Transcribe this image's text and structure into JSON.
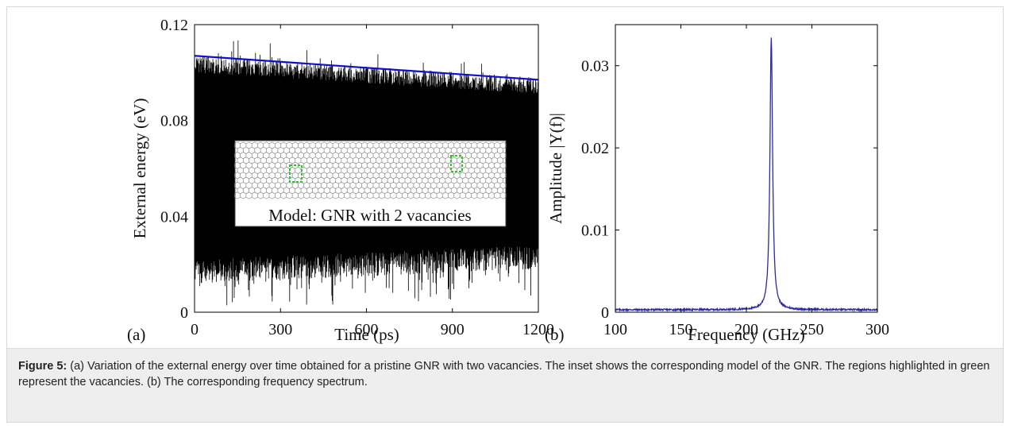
{
  "caption": {
    "label": "Figure 5:",
    "text": " (a) Variation of the external energy over time obtained for a pristine GNR with two vacancies. The inset shows the corresponding model of the GNR. The regions highlighted in green represent the vacancies. (b) The corresponding frequency spectrum."
  },
  "colors": {
    "signal": "#000000",
    "trend": "#1010c8",
    "spectrum": "#2a2aa8",
    "vacancy": "#22cc22",
    "lattice": "#777777"
  },
  "chart_data": [
    {
      "panel": "(a)",
      "type": "line",
      "xlabel": "Time (ps)",
      "ylabel": "External energy (eV)",
      "xlim": [
        0,
        1200
      ],
      "ylim": [
        0,
        0.12
      ],
      "xticks": [
        "0",
        "300",
        "600",
        "900",
        "1200"
      ],
      "yticks": [
        "0",
        "0.04",
        "0.08",
        "0.12"
      ],
      "series": [
        {
          "style": "dense oscillation",
          "envelope_upper": [
            [
              0,
              0.107
            ],
            [
              1200,
              0.098
            ]
          ],
          "envelope_lower": [
            [
              0,
              0.012
            ],
            [
              1200,
              0.018
            ]
          ]
        },
        {
          "style": "linear trend",
          "x": [
            0,
            1200
          ],
          "y": [
            0.107,
            0.097
          ]
        }
      ],
      "inset": {
        "caption": "Model: GNR with 2 vacancies",
        "vacancies": 2
      }
    },
    {
      "panel": "(b)",
      "type": "line",
      "xlabel": "Frequency (GHz)",
      "ylabel": "Amplitude |Y(f)|",
      "xlim": [
        100,
        300
      ],
      "ylim": [
        0,
        0.035
      ],
      "xticks": [
        "100",
        "150",
        "200",
        "250",
        "300"
      ],
      "yticks": [
        "0",
        "0.01",
        "0.02",
        "0.03"
      ],
      "series": [
        {
          "peak_x": 219,
          "peak_y": 0.0335,
          "baseline": 0.0003
        }
      ]
    }
  ]
}
